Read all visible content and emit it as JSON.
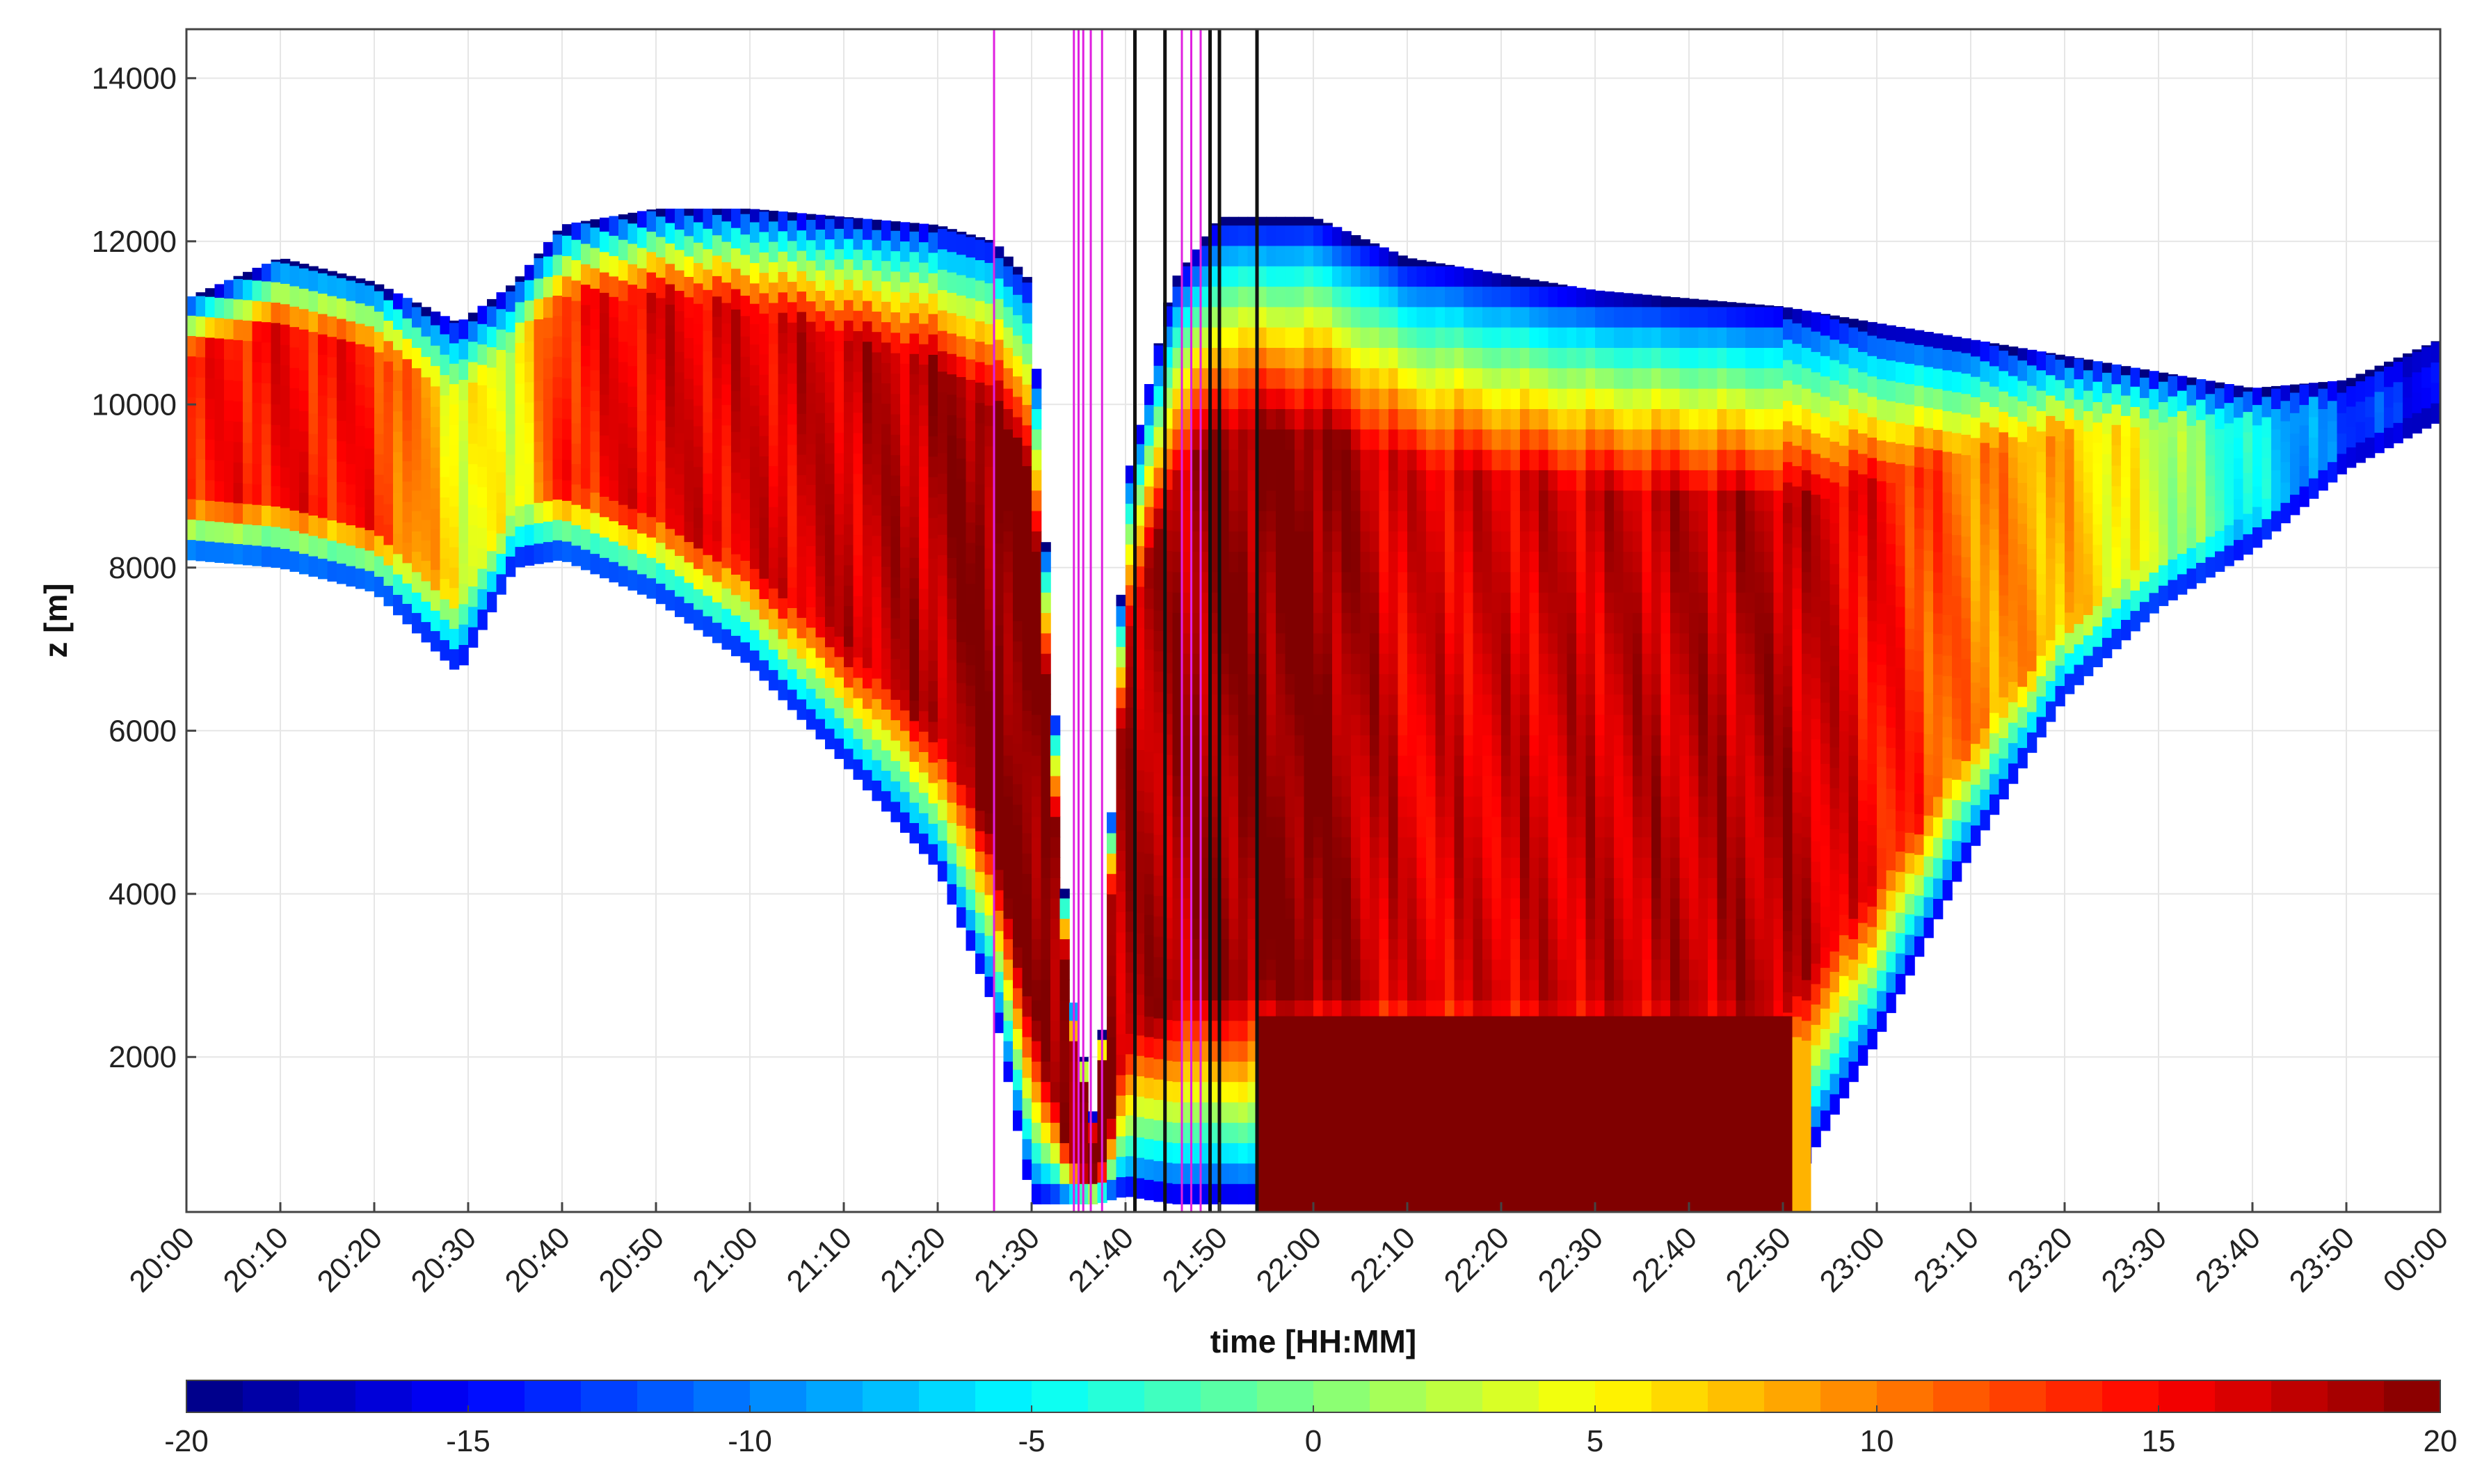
{
  "chart_data": {
    "type": "heatmap",
    "title": "",
    "xlabel": "time [HH:MM]",
    "ylabel": "z [m]",
    "x_range_minutes": [
      0,
      240
    ],
    "x_tick_labels": [
      "20:00",
      "20:10",
      "20:20",
      "20:30",
      "20:40",
      "20:50",
      "21:00",
      "21:10",
      "21:20",
      "21:30",
      "21:40",
      "21:50",
      "22:00",
      "22:10",
      "22:20",
      "22:30",
      "22:40",
      "22:50",
      "23:00",
      "23:10",
      "23:20",
      "23:30",
      "23:40",
      "23:50",
      "00:00"
    ],
    "ylim": [
      100,
      14600
    ],
    "y_ticks": [
      2000,
      4000,
      6000,
      8000,
      10000,
      12000,
      14000
    ],
    "grid": true,
    "colorbar": {
      "ticks": [
        -20,
        -15,
        -10,
        -5,
        0,
        5,
        10,
        15,
        20
      ],
      "range": [
        -20,
        20
      ],
      "colormap": "jet",
      "position": "bottom"
    },
    "cloud_profile": [
      {
        "t": 0,
        "top": 11300,
        "base": 8100,
        "peak": 14
      },
      {
        "t": 10,
        "top": 11800,
        "base": 8000,
        "peak": 15
      },
      {
        "t": 20,
        "top": 11500,
        "base": 7700,
        "peak": 14
      },
      {
        "t": 29,
        "top": 11000,
        "base": 6700,
        "peak": 5
      },
      {
        "t": 35,
        "top": 11500,
        "base": 8000,
        "peak": 4
      },
      {
        "t": 40,
        "top": 12200,
        "base": 8100,
        "peak": 14
      },
      {
        "t": 50,
        "top": 12400,
        "base": 7600,
        "peak": 16
      },
      {
        "t": 60,
        "top": 12400,
        "base": 6800,
        "peak": 16
      },
      {
        "t": 70,
        "top": 12300,
        "base": 5600,
        "peak": 17
      },
      {
        "t": 80,
        "top": 12200,
        "base": 4300,
        "peak": 18
      },
      {
        "t": 86,
        "top": 12000,
        "base": 2600,
        "peak": 20
      },
      {
        "t": 90,
        "top": 11500,
        "base": 200,
        "peak": 20
      },
      {
        "t": 94,
        "top": 3000,
        "base": 200,
        "peak": 20
      },
      {
        "t": 97,
        "top": 1000,
        "base": 200,
        "peak": 20
      },
      {
        "t": 100,
        "top": 9000,
        "base": 300,
        "peak": 18
      },
      {
        "t": 105,
        "top": 11500,
        "base": 200,
        "peak": 18
      },
      {
        "t": 110,
        "top": 12300,
        "base": 200,
        "peak": 19
      },
      {
        "t": 120,
        "top": 12300,
        "base": 200,
        "peak": 20
      },
      {
        "t": 130,
        "top": 11800,
        "base": 200,
        "peak": 16
      },
      {
        "t": 150,
        "top": 11400,
        "base": 200,
        "peak": 17
      },
      {
        "t": 170,
        "top": 11200,
        "base": 200,
        "peak": 18
      },
      {
        "t": 180,
        "top": 11000,
        "base": 2200,
        "peak": 15
      },
      {
        "t": 190,
        "top": 10800,
        "base": 4500,
        "peak": 10
      },
      {
        "t": 200,
        "top": 10600,
        "base": 6400,
        "peak": 8
      },
      {
        "t": 210,
        "top": 10400,
        "base": 7500,
        "peak": 3
      },
      {
        "t": 220,
        "top": 10200,
        "base": 8200,
        "peak": -5
      },
      {
        "t": 230,
        "top": 10300,
        "base": 9200,
        "peak": -12
      },
      {
        "t": 240,
        "top": 10800,
        "base": 9800,
        "peak": -15
      }
    ],
    "surface_layer": {
      "t_start": 114,
      "t_end": 171,
      "top": 2500,
      "value": 20
    },
    "vertical_markers": [
      {
        "t": 86.0,
        "color": "#e020e0"
      },
      {
        "t": 94.5,
        "color": "#e020e0"
      },
      {
        "t": 95.0,
        "color": "#e020e0"
      },
      {
        "t": 95.5,
        "color": "#e020e0"
      },
      {
        "t": 96.3,
        "color": "#e020e0"
      },
      {
        "t": 97.5,
        "color": "#e020e0"
      },
      {
        "t": 101.0,
        "color": "#111111"
      },
      {
        "t": 104.2,
        "color": "#111111"
      },
      {
        "t": 106.0,
        "color": "#e020e0"
      },
      {
        "t": 107.0,
        "color": "#e020e0"
      },
      {
        "t": 108.0,
        "color": "#e020e0"
      },
      {
        "t": 109.0,
        "color": "#111111"
      },
      {
        "t": 110.0,
        "color": "#111111"
      },
      {
        "t": 114.0,
        "color": "#111111"
      }
    ],
    "colors": {
      "grid": "#e6e6e6",
      "axis": "#333333",
      "marker_magenta": "#e020e0",
      "marker_black": "#111111"
    }
  }
}
